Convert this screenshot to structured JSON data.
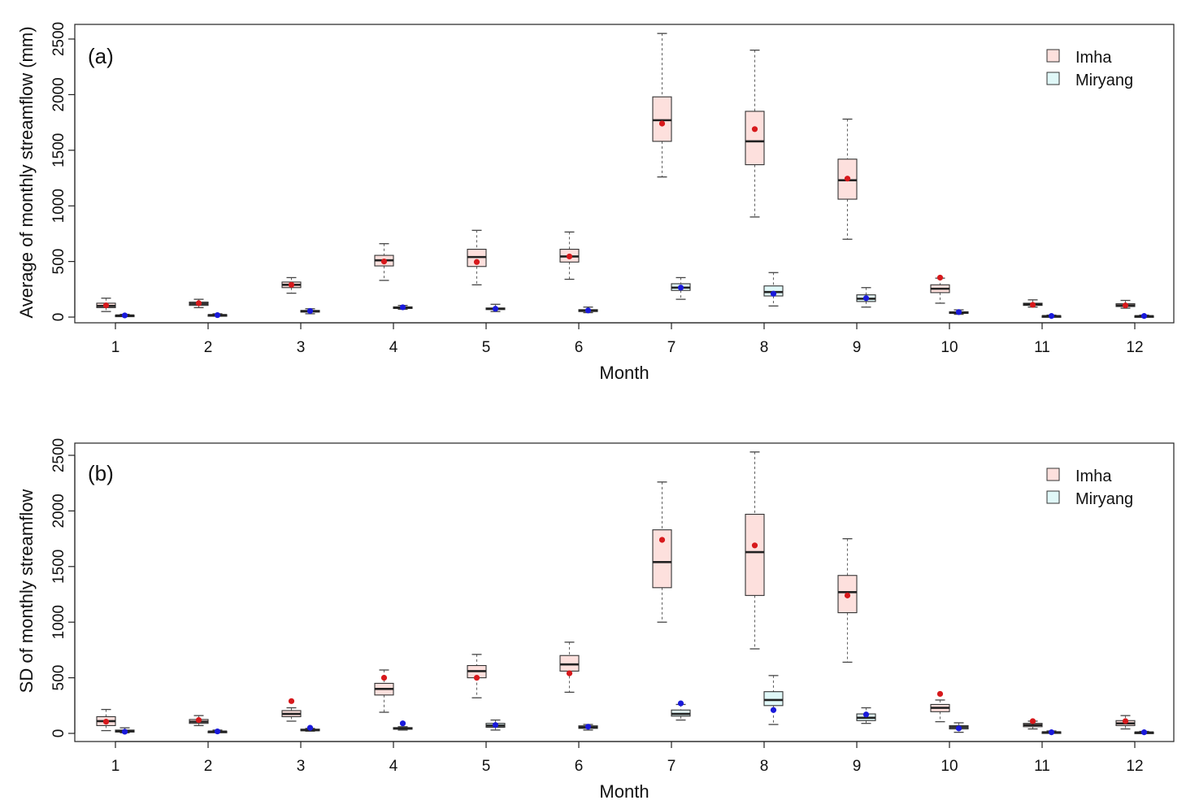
{
  "colors": {
    "imha_fill": "#fde0dd",
    "miryang_fill": "#e0f8f8",
    "imha_mean": "#d7191c",
    "miryang_mean": "#1a1adb"
  },
  "chart_data": [
    {
      "type": "box",
      "panel_label": "(a)",
      "title": "",
      "xlabel": "Month",
      "ylabel": "Average of monthly streamflow (mm)",
      "categories": [
        "1",
        "2",
        "3",
        "4",
        "5",
        "6",
        "7",
        "8",
        "9",
        "10",
        "11",
        "12"
      ],
      "ylim": [
        0,
        2600
      ],
      "yticks": [
        "0",
        "500",
        "1000",
        "1500",
        "2000",
        "2500"
      ],
      "ytick_values": [
        0,
        500,
        1000,
        1500,
        2000,
        2500
      ],
      "legend_position": "top-right",
      "series": [
        {
          "name": "Imha",
          "min": [
            50,
            85,
            215,
            330,
            290,
            340,
            1260,
            900,
            700,
            125,
            90,
            80
          ],
          "q1": [
            85,
            105,
            265,
            460,
            455,
            495,
            1580,
            1370,
            1060,
            220,
            105,
            95
          ],
          "median": [
            100,
            120,
            290,
            510,
            540,
            545,
            1770,
            1580,
            1230,
            255,
            115,
            105
          ],
          "q3": [
            125,
            135,
            315,
            555,
            610,
            610,
            1980,
            1850,
            1420,
            290,
            125,
            120
          ],
          "max": [
            170,
            160,
            355,
            660,
            780,
            765,
            2550,
            2400,
            1780,
            350,
            155,
            150
          ],
          "mean": [
            105,
            125,
            290,
            500,
            495,
            545,
            1740,
            1690,
            1245,
            355,
            110,
            105
          ]
        },
        {
          "name": "Miryang",
          "min": [
            5,
            8,
            30,
            70,
            50,
            40,
            160,
            100,
            90,
            25,
            3,
            3
          ],
          "q1": [
            10,
            12,
            45,
            78,
            68,
            50,
            240,
            190,
            140,
            35,
            6,
            6
          ],
          "median": [
            14,
            18,
            52,
            85,
            75,
            58,
            265,
            225,
            165,
            40,
            9,
            8
          ],
          "q3": [
            18,
            22,
            60,
            92,
            82,
            67,
            300,
            280,
            200,
            48,
            12,
            12
          ],
          "max": [
            25,
            30,
            75,
            105,
            115,
            90,
            355,
            400,
            265,
            65,
            18,
            18
          ],
          "mean": [
            15,
            18,
            55,
            88,
            75,
            60,
            265,
            210,
            170,
            45,
            10,
            10
          ]
        }
      ]
    },
    {
      "type": "box",
      "panel_label": "(b)",
      "title": "",
      "xlabel": "Month",
      "ylabel": "SD of monthly streamflow",
      "categories": [
        "1",
        "2",
        "3",
        "4",
        "5",
        "6",
        "7",
        "8",
        "9",
        "10",
        "11",
        "12"
      ],
      "ylim": [
        0,
        2600
      ],
      "yticks": [
        "0",
        "500",
        "1000",
        "1500",
        "2000",
        "2500"
      ],
      "ytick_values": [
        0,
        500,
        1000,
        1500,
        2000,
        2500
      ],
      "legend_position": "top-right",
      "series": [
        {
          "name": "Imha",
          "min": [
            25,
            70,
            110,
            190,
            320,
            370,
            1000,
            760,
            640,
            105,
            40,
            40
          ],
          "q1": [
            70,
            90,
            150,
            345,
            500,
            560,
            1310,
            1240,
            1085,
            195,
            60,
            70
          ],
          "median": [
            110,
            105,
            175,
            400,
            560,
            620,
            1540,
            1630,
            1270,
            230,
            75,
            90
          ],
          "q3": [
            150,
            125,
            205,
            450,
            610,
            700,
            1830,
            1970,
            1420,
            260,
            90,
            115
          ],
          "max": [
            215,
            160,
            230,
            570,
            710,
            820,
            2260,
            2530,
            1750,
            300,
            110,
            160
          ],
          "mean": [
            105,
            120,
            290,
            500,
            500,
            540,
            1740,
            1690,
            1240,
            355,
            110,
            110
          ]
        },
        {
          "name": "Miryang",
          "min": [
            5,
            8,
            20,
            30,
            30,
            30,
            120,
            80,
            90,
            10,
            3,
            3
          ],
          "q1": [
            12,
            12,
            25,
            38,
            55,
            45,
            155,
            250,
            115,
            40,
            6,
            5
          ],
          "median": [
            20,
            16,
            30,
            45,
            70,
            55,
            175,
            300,
            140,
            55,
            10,
            8
          ],
          "q3": [
            30,
            20,
            38,
            52,
            90,
            68,
            210,
            375,
            175,
            70,
            14,
            12
          ],
          "max": [
            50,
            30,
            45,
            60,
            120,
            80,
            260,
            520,
            230,
            95,
            22,
            18
          ],
          "mean": [
            15,
            18,
            50,
            90,
            75,
            60,
            270,
            210,
            170,
            45,
            10,
            10
          ]
        }
      ]
    }
  ]
}
